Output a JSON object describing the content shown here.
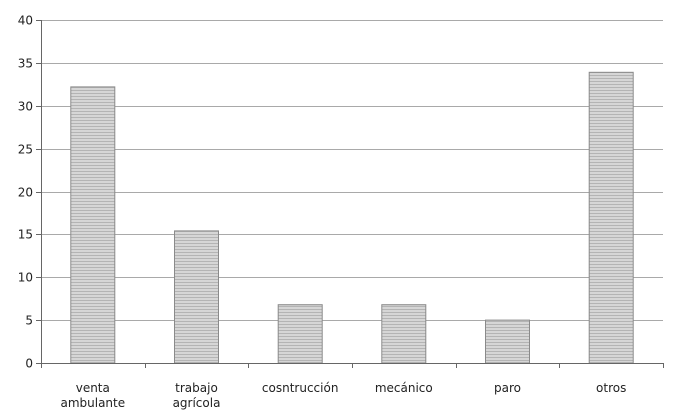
{
  "chart_data": {
    "type": "bar",
    "categories": [
      [
        "venta",
        "ambulante"
      ],
      [
        "trabajo",
        "agrícola"
      ],
      [
        "cosntrucción"
      ],
      [
        "mecánico"
      ],
      [
        "paro"
      ],
      [
        "otros"
      ]
    ],
    "values": [
      32.2,
      15.4,
      6.8,
      6.8,
      5.0,
      33.9
    ],
    "title": "",
    "xlabel": "",
    "ylabel": "",
    "ylim": [
      0,
      40
    ],
    "yticks": [
      0,
      5,
      10,
      15,
      20,
      25,
      30,
      35,
      40
    ],
    "grid": true,
    "legend": "none",
    "colors": {
      "bar_fill": "#d6d6d6",
      "bar_stripe": "#b4b4b4",
      "bar_edge": "#8a8a8a",
      "grid": "#a9a9a9",
      "axis": "#666666"
    }
  }
}
